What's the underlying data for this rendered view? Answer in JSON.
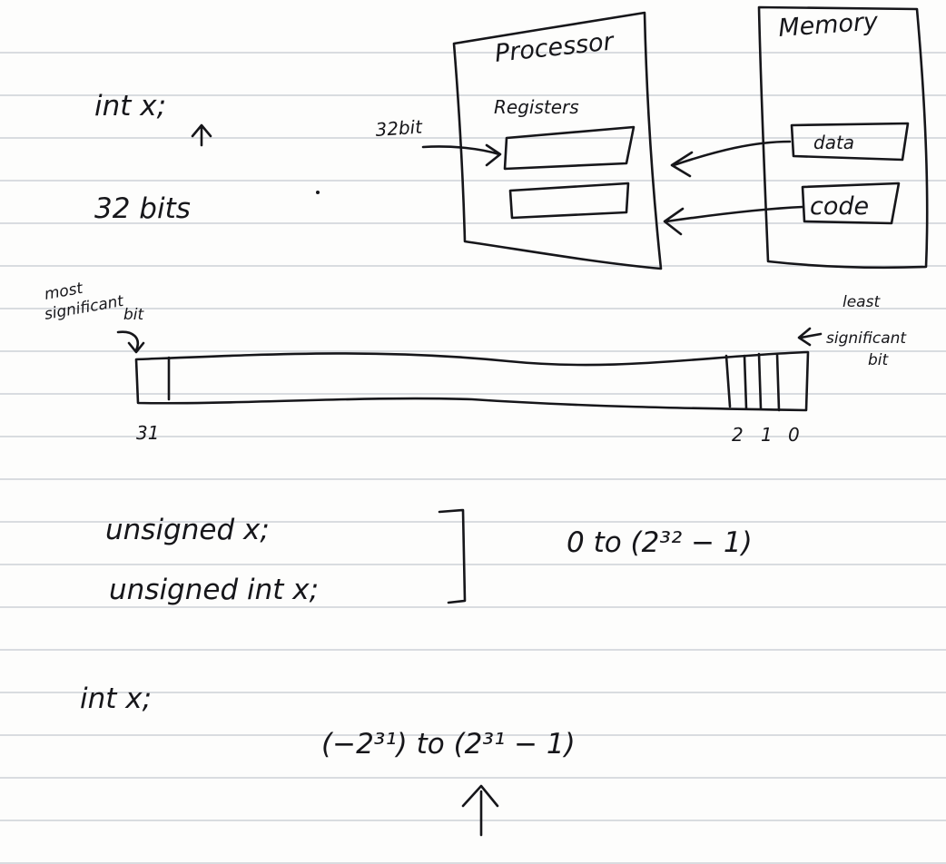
{
  "notes": {
    "declaration_int": "int x;",
    "bits_label": "32 bits",
    "processor_title": "Processor",
    "registers_label": "Registers",
    "register_size": "32bit",
    "memory_title": "Memory",
    "memory_data": "data",
    "memory_code": "code",
    "msb_label_line1": "most",
    "msb_label_line2": "significant",
    "msb_label_line3": "bit",
    "lsb_label_line1": "least",
    "lsb_label_line2": "significant",
    "lsb_label_line3": "bit",
    "bit_index_high": "31",
    "bit_index_2": "2",
    "bit_index_1": "1",
    "bit_index_0": "0",
    "unsigned_decl_1": "unsigned x;",
    "unsigned_decl_2": "unsigned int x;",
    "unsigned_range": "0 to (2³² − 1)",
    "signed_decl": "int x;",
    "signed_range": "(−2³¹) to (2³¹ − 1)"
  },
  "colors": {
    "ink": "#16161a",
    "paper": "#fdfdfc",
    "rule_line": "#d9dce0"
  }
}
